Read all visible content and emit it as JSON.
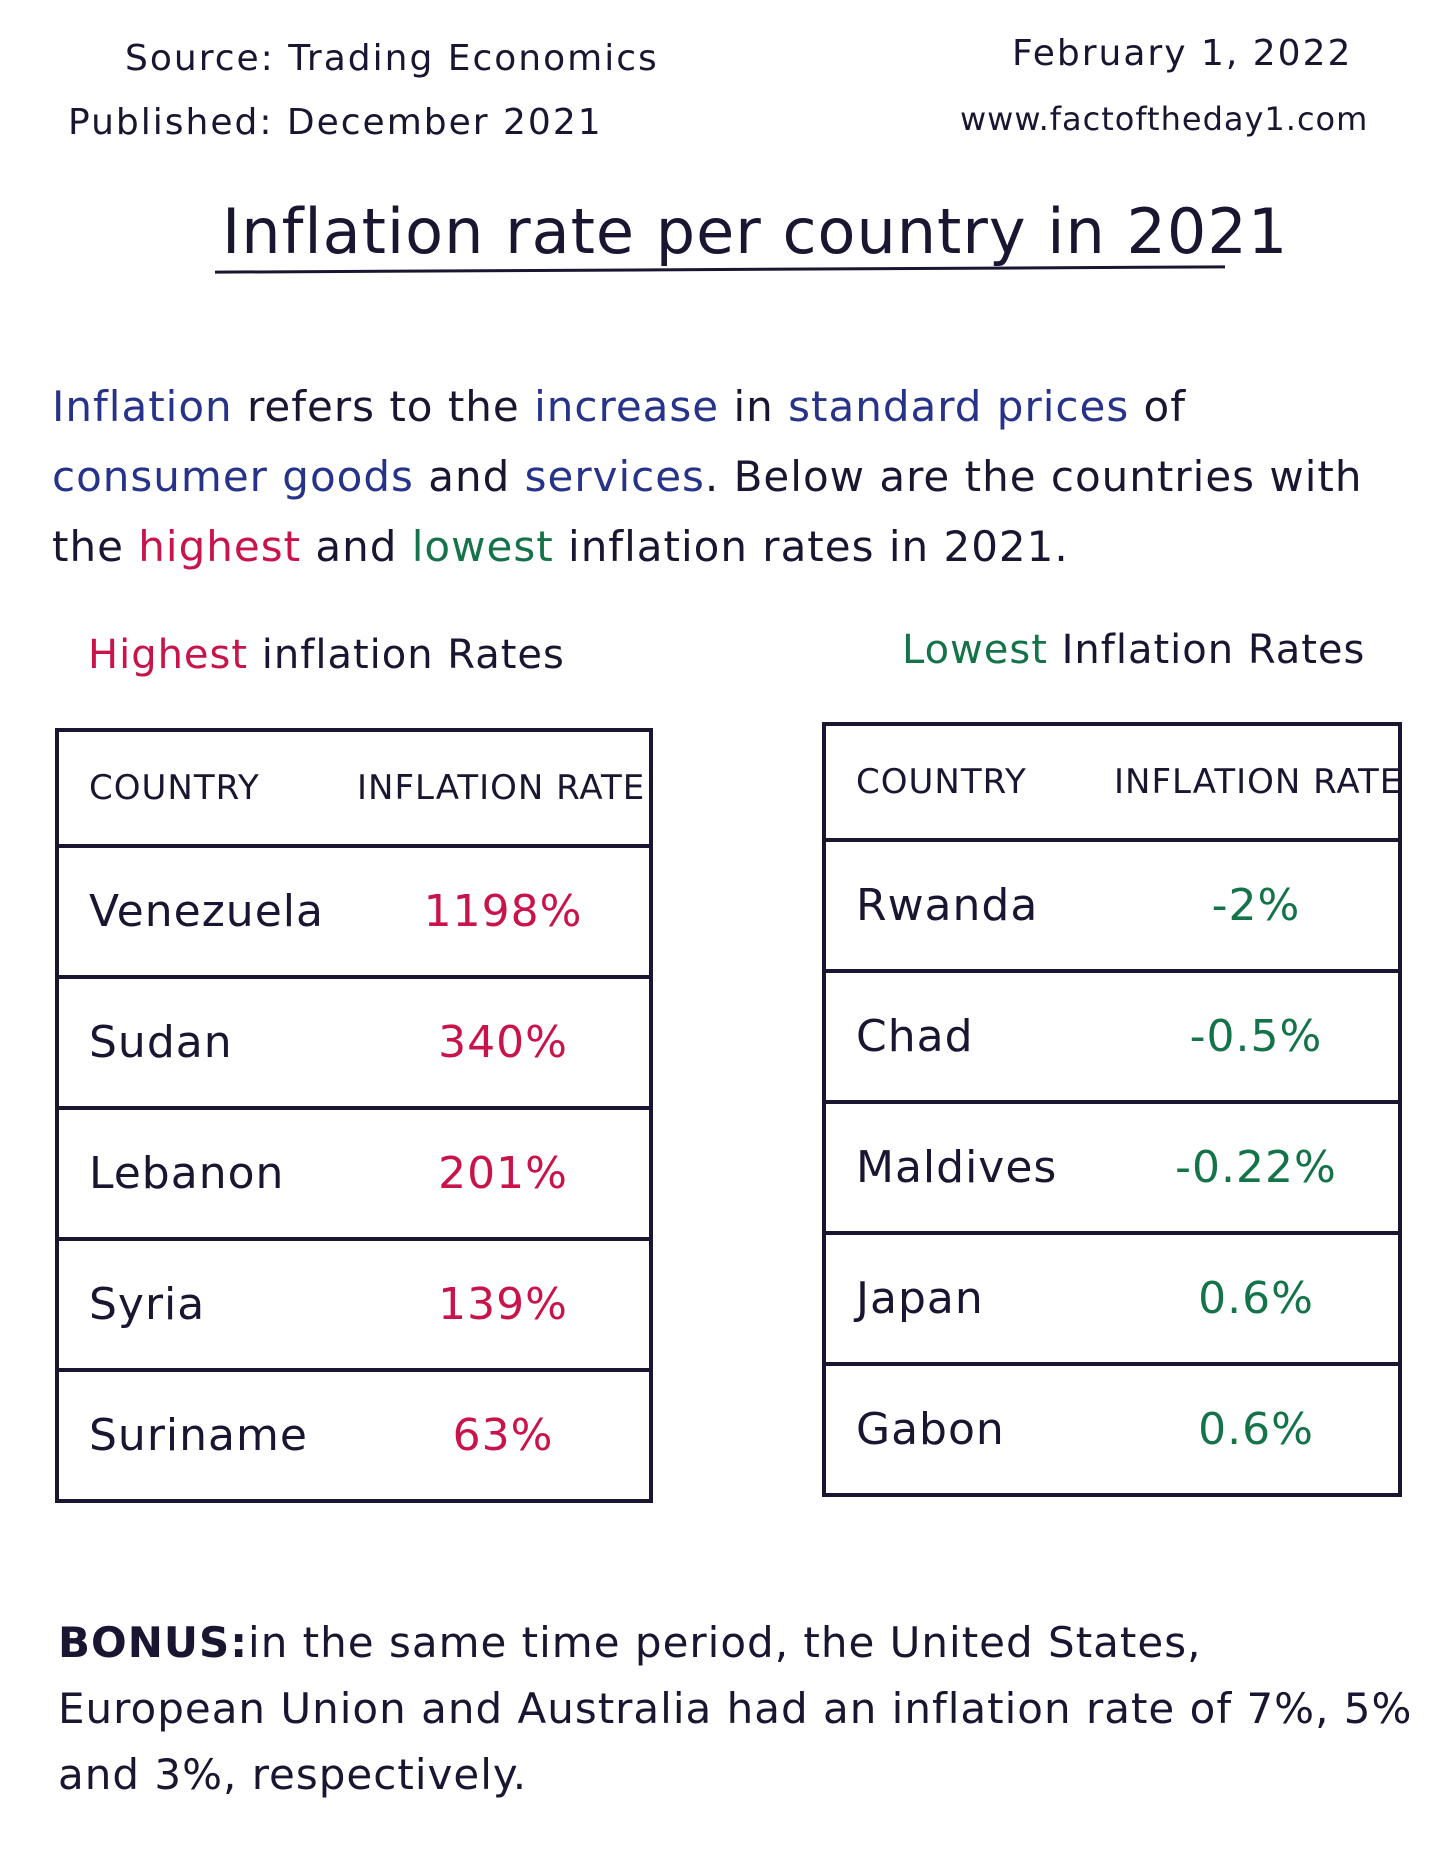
{
  "header": {
    "source": "Source: Trading Economics",
    "published": "Published: December 2021",
    "date": "February 1, 2022",
    "website": "www.factoftheday1.com"
  },
  "title": "Inflation rate per country in 2021",
  "intro": {
    "w1": "Inflation",
    "w2": " refers to the ",
    "w3": "increase",
    "w4": " in ",
    "w5": "standard prices",
    "w6": " of ",
    "w7": "consumer goods",
    "w8": " and ",
    "w9": "services",
    "w10": ". Below are the countries with the ",
    "w11": "highest",
    "w12": " and ",
    "w13": "lowest",
    "w14": " inflation rates in 2021."
  },
  "highest": {
    "label_colored": "Highest",
    "label_rest": " inflation Rates",
    "col_country": "COUNTRY",
    "col_rate": "INFLATION RATE",
    "rows": [
      {
        "country": "Venezuela",
        "rate": "1198%"
      },
      {
        "country": "Sudan",
        "rate": "340%"
      },
      {
        "country": "Lebanon",
        "rate": "201%"
      },
      {
        "country": "Syria",
        "rate": "139%"
      },
      {
        "country": "Suriname",
        "rate": "63%"
      }
    ]
  },
  "lowest": {
    "label_colored": "Lowest",
    "label_rest": " Inflation Rates",
    "col_country": "COUNTRY",
    "col_rate": "INFLATION RATE",
    "rows": [
      {
        "country": "Rwanda",
        "rate": "-2%"
      },
      {
        "country": "Chad",
        "rate": "-0.5%"
      },
      {
        "country": "Maldives",
        "rate": "-0.22%"
      },
      {
        "country": "Japan",
        "rate": "0.6%"
      },
      {
        "country": "Gabon",
        "rate": "0.6%"
      }
    ]
  },
  "bonus": {
    "label": "BONUS:",
    "text": "in the same time period, the United States, European Union and Australia had an inflation rate of 7%, 5% and 3%, respectively."
  },
  "colors": {
    "ink": "#1a1530",
    "blue": "#27328a",
    "highest": "#c8144a",
    "lowest": "#15734a"
  }
}
